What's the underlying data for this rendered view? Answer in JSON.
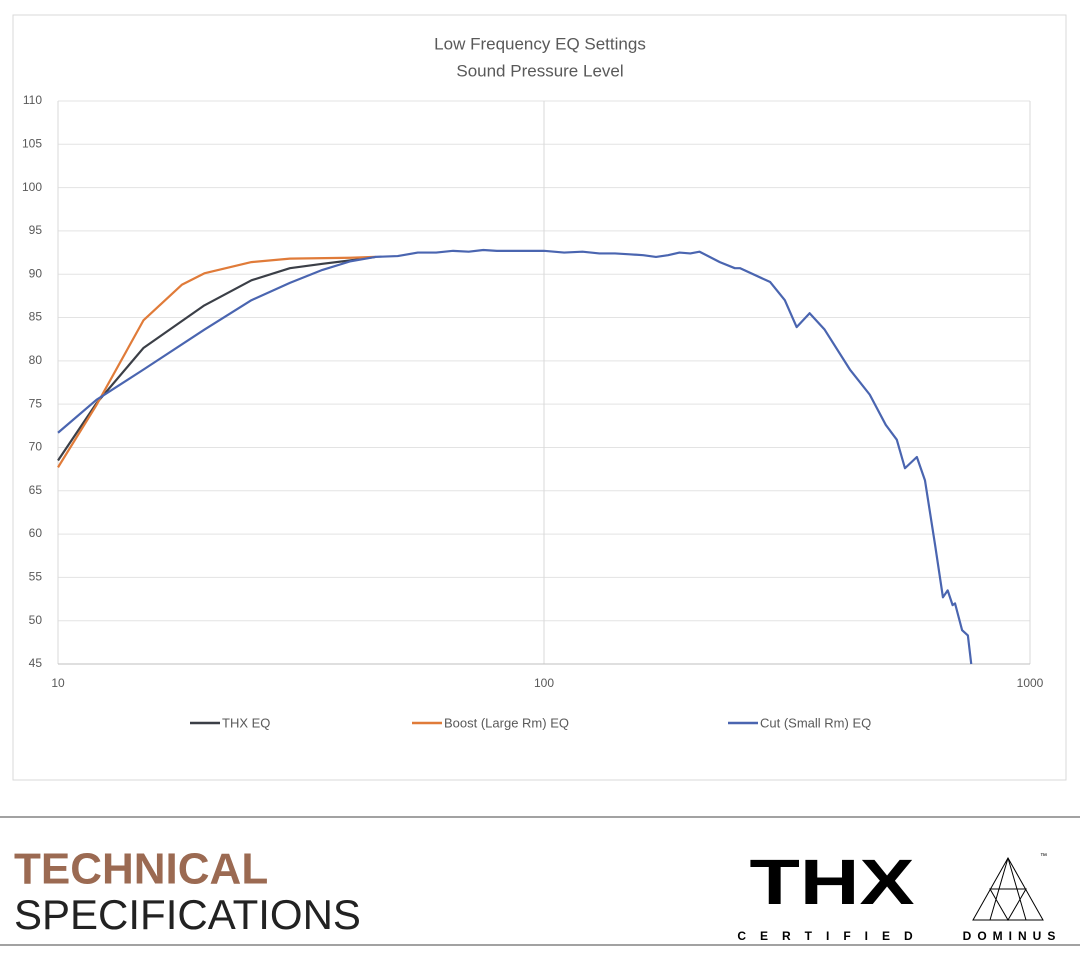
{
  "chart_data": {
    "type": "line",
    "title": "Low Frequency EQ Settings",
    "subtitle": "Sound Pressure Level",
    "xscale": "log",
    "xlim": [
      10,
      1000
    ],
    "xticks": [
      10,
      100,
      1000
    ],
    "ylim": [
      45,
      110
    ],
    "yticks": [
      45,
      50,
      55,
      60,
      65,
      70,
      75,
      80,
      85,
      90,
      95,
      100,
      105,
      110
    ],
    "grid": true,
    "legend": "bottom",
    "series": [
      {
        "name": "THX EQ",
        "color": "#3b3f47",
        "x": [
          10,
          12,
          15,
          20,
          25,
          30,
          35,
          40,
          45
        ],
        "values": [
          68.5,
          75.1,
          81.5,
          86.4,
          89.3,
          90.7,
          91.2,
          91.6,
          92
        ]
      },
      {
        "name": "Boost (Large Rm) EQ",
        "color": "#e07b39",
        "x": [
          10,
          12,
          15,
          18,
          20,
          25,
          30,
          40,
          45
        ],
        "values": [
          67.7,
          74.9,
          84.7,
          88.8,
          90.1,
          91.4,
          91.8,
          91.9,
          92
        ]
      },
      {
        "name": "Cut (Small Rm) EQ",
        "color": "#4a65b0",
        "x": [
          10,
          12,
          15,
          20,
          25,
          30,
          35,
          40,
          45,
          50,
          55,
          60,
          65,
          70,
          75,
          80,
          90,
          100,
          110,
          120,
          130,
          140,
          150,
          160,
          170,
          180,
          190,
          200,
          209,
          230,
          247,
          253,
          292,
          313,
          331,
          352,
          378,
          426,
          468,
          505,
          532,
          553,
          585,
          608,
          638,
          662,
          677,
          693,
          701,
          725,
          745,
          757
        ],
        "values": [
          71.7,
          75.5,
          79,
          83.6,
          87,
          89,
          90.5,
          91.5,
          92,
          92.1,
          92.5,
          92.5,
          92.7,
          92.6,
          92.8,
          92.7,
          92.7,
          92.7,
          92.5,
          92.6,
          92.4,
          92.4,
          92.3,
          92.2,
          92,
          92.2,
          92.5,
          92.4,
          92.6,
          91.4,
          90.7,
          90.7,
          89.1,
          87,
          83.9,
          85.5,
          83.6,
          79,
          76.1,
          72.6,
          70.9,
          67.6,
          68.9,
          66.2,
          58.7,
          52.7,
          53.5,
          51.8,
          52,
          48.9,
          48.3,
          45
        ]
      }
    ]
  },
  "footer": {
    "heading_bold": "TECHNICAL",
    "heading": "SPECIFICATIONS",
    "logo_thx": "THX",
    "logo_thx_sub": "CERTIFIED",
    "logo_tm": "™",
    "logo_dominus": "DOMINUS"
  }
}
